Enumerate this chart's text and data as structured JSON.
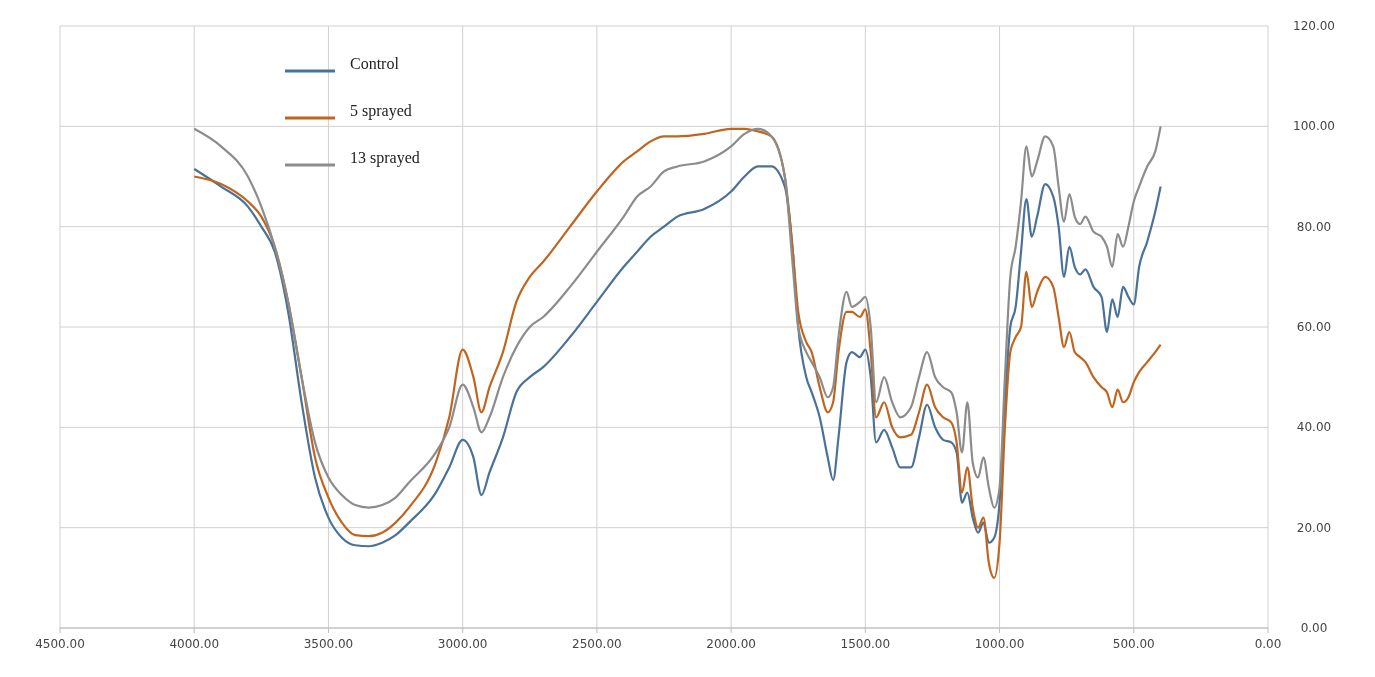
{
  "chart_data": {
    "type": "line",
    "legend": "top left",
    "grid": true,
    "marker": "none",
    "line_style": "solid",
    "xlim": [
      4500,
      0
    ],
    "ylim": [
      0,
      120
    ],
    "xticks": [
      {
        "value": 4500,
        "label": "4500.00"
      },
      {
        "value": 4000,
        "label": "4000.00"
      },
      {
        "value": 3500,
        "label": "3500.00"
      },
      {
        "value": 3000,
        "label": "3000.00"
      },
      {
        "value": 2500,
        "label": "2500.00"
      },
      {
        "value": 2000,
        "label": "2000.00"
      },
      {
        "value": 1500,
        "label": "1500.00"
      },
      {
        "value": 1000,
        "label": "1000.00"
      },
      {
        "value": 500,
        "label": "500.00"
      },
      {
        "value": 0,
        "label": "0.00"
      }
    ],
    "yticks": [
      {
        "value": 0,
        "label": "0.00"
      },
      {
        "value": 20,
        "label": "20.00"
      },
      {
        "value": 40,
        "label": "40.00"
      },
      {
        "value": 60,
        "label": "60.00"
      },
      {
        "value": 80,
        "label": "80.00"
      },
      {
        "value": 100,
        "label": "100.00"
      },
      {
        "value": 120,
        "label": "120.00"
      }
    ],
    "x": [
      4000,
      3900,
      3800,
      3750,
      3700,
      3650,
      3600,
      3550,
      3500,
      3450,
      3400,
      3350,
      3300,
      3250,
      3200,
      3100,
      3050,
      3000,
      2960,
      2930,
      2900,
      2850,
      2800,
      2750,
      2700,
      2600,
      2500,
      2400,
      2350,
      2300,
      2250,
      2200,
      2100,
      2000,
      1950,
      1900,
      1850,
      1800,
      1770,
      1750,
      1720,
      1700,
      1670,
      1640,
      1620,
      1600,
      1570,
      1550,
      1520,
      1500,
      1480,
      1460,
      1430,
      1400,
      1370,
      1330,
      1300,
      1270,
      1240,
      1210,
      1180,
      1160,
      1140,
      1120,
      1100,
      1080,
      1060,
      1040,
      1020,
      1000,
      980,
      960,
      940,
      920,
      900,
      880,
      860,
      830,
      800,
      780,
      760,
      740,
      720,
      700,
      680,
      650,
      620,
      600,
      580,
      560,
      540,
      520,
      500,
      480,
      450,
      420,
      400
    ],
    "series": [
      {
        "name": "Control",
        "color": "#4a7298",
        "values": [
          91.5,
          88,
          84,
          80,
          75,
          63,
          45,
          30,
          22,
          18,
          16.5,
          16.3,
          17,
          18.5,
          21,
          27,
          32,
          37.5,
          34,
          26.5,
          31,
          38,
          47,
          50,
          52,
          58,
          65,
          72,
          75,
          78,
          80,
          82,
          83.5,
          87,
          90,
          92,
          92,
          88,
          75,
          60,
          50,
          47,
          42,
          34,
          29.5,
          38,
          53,
          55,
          54,
          55.5,
          50,
          37,
          39.5,
          36,
          32,
          32,
          38,
          44.5,
          40,
          37.5,
          37,
          35,
          25,
          27,
          22,
          19,
          21,
          17,
          18,
          25,
          45,
          60,
          64,
          75,
          85.5,
          78,
          82,
          88.5,
          86,
          80,
          70,
          76,
          72,
          70.5,
          71.5,
          68,
          66,
          59,
          65.5,
          62,
          68,
          66,
          64.5,
          72,
          77,
          83,
          88
        ]
      },
      {
        "name": "5 sprayed",
        "color": "#c0651f",
        "values": [
          90,
          88.5,
          85,
          82,
          76,
          65,
          50,
          34,
          26,
          21,
          18.5,
          18.3,
          19,
          21,
          24,
          33,
          42,
          55.5,
          50,
          43,
          48,
          55,
          65,
          70,
          73,
          80,
          87,
          93,
          95,
          97,
          98,
          98,
          98.5,
          99.5,
          99.5,
          99,
          98,
          90,
          75,
          63,
          57,
          55,
          48,
          43,
          45,
          55,
          63,
          63,
          62,
          63.5,
          55,
          42,
          45,
          40,
          38,
          38.5,
          43,
          48.5,
          44,
          42,
          41,
          37,
          27,
          32,
          24,
          20,
          22,
          13,
          10,
          17,
          40,
          55,
          58,
          60,
          71,
          64,
          67,
          70,
          68,
          62,
          56,
          59,
          55,
          54,
          53,
          50,
          48,
          47,
          44,
          47.5,
          45,
          46,
          49,
          51,
          53,
          55,
          56.5
        ]
      },
      {
        "name": "13 sprayed",
        "color": "#8c8c8c",
        "values": [
          99.5,
          96,
          90,
          84,
          76,
          65,
          50,
          37,
          30,
          26.5,
          24.5,
          24,
          24.5,
          26,
          29,
          35,
          40,
          48.5,
          44,
          39,
          42,
          50,
          56,
          60,
          62,
          68,
          75,
          82,
          86,
          88,
          91,
          92,
          93,
          96,
          98.5,
          99.5,
          98,
          90,
          72,
          60,
          55,
          53,
          50,
          46,
          48,
          58,
          67,
          64,
          65,
          66,
          60,
          45,
          50,
          45,
          42,
          44,
          50,
          55,
          50,
          48,
          47,
          43,
          35,
          45,
          33,
          30,
          34,
          28,
          24,
          28,
          50,
          70,
          76,
          85,
          96,
          90,
          93,
          98,
          96,
          88,
          81,
          86.5,
          82,
          80.5,
          82,
          79,
          78,
          76,
          72,
          78.5,
          76,
          80,
          85,
          88,
          92,
          95,
          100
        ]
      }
    ]
  }
}
